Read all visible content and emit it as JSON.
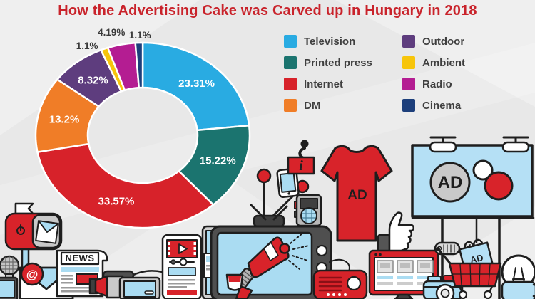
{
  "title": "How the Advertising Cake was Carved up in Hungary in 2018",
  "title_color": "#c9232b",
  "background_color": "#e8e8e8",
  "chart_data": {
    "type": "pie",
    "donut": true,
    "title": "How the Advertising Cake was Carved up in Hungary in 2018",
    "unit": "%",
    "start_angle_deg": 0,
    "direction": "clockwise",
    "grid": false,
    "legend_position": "right",
    "series": [
      {
        "label": "Television",
        "value": 23.31,
        "display": "23.31%",
        "color": "#29abe2",
        "label_inside": true
      },
      {
        "label": "Printed press",
        "value": 15.22,
        "display": "15.22%",
        "color": "#1b746f",
        "label_inside": true
      },
      {
        "label": "Internet",
        "value": 33.57,
        "display": "33.57%",
        "color": "#d7222a",
        "label_inside": true
      },
      {
        "label": "DM",
        "value": 13.2,
        "display": "13.2%",
        "color": "#f07d27",
        "label_inside": true
      },
      {
        "label": "Outdoor",
        "value": 8.32,
        "display": "8.32%",
        "color": "#5e3d7e",
        "label_inside": true
      },
      {
        "label": "Ambient",
        "value": 1.1,
        "display": "1.1%",
        "color": "#f7c50b",
        "label_inside": false
      },
      {
        "label": "Radio",
        "value": 4.19,
        "display": "4.19%",
        "color": "#b41d92",
        "label_inside": false
      },
      {
        "label": "Cinema",
        "value": 1.1,
        "display": "1.1%",
        "color": "#1d3f7b",
        "label_inside": false
      }
    ],
    "legend_columns": [
      [
        "Television",
        "Printed press",
        "Internet",
        "DM"
      ],
      [
        "Outdoor",
        "Ambient",
        "Radio",
        "Cinema"
      ]
    ]
  },
  "illustrations": {
    "news_label": "NEWS",
    "tshirt_ad_label": "AD",
    "billboard_ad_label": "AD",
    "bag_ad_label": "AD",
    "info_sign_label": "i",
    "at_symbol": "@",
    "icons": [
      "mailbox-icon",
      "microphone-icon",
      "email-envelope-icon",
      "newspaper-icon",
      "video-camera-icon",
      "tablet-video-icon",
      "tablet-device-icon",
      "receipt-printer-icon",
      "tv-icon",
      "megaphone-icon",
      "antenna-icon",
      "smartphone-icon",
      "info-sign-icon",
      "handheld-radio-icon",
      "tshirt-icon",
      "thumbs-up-icon",
      "browser-monitor-icon",
      "camera-icon",
      "billboard-icon",
      "price-tag-icon",
      "shopping-bag-icon",
      "shopping-cart-icon",
      "lightbulb-icon",
      "radio-speaker-icon",
      "laptop-icon"
    ]
  }
}
